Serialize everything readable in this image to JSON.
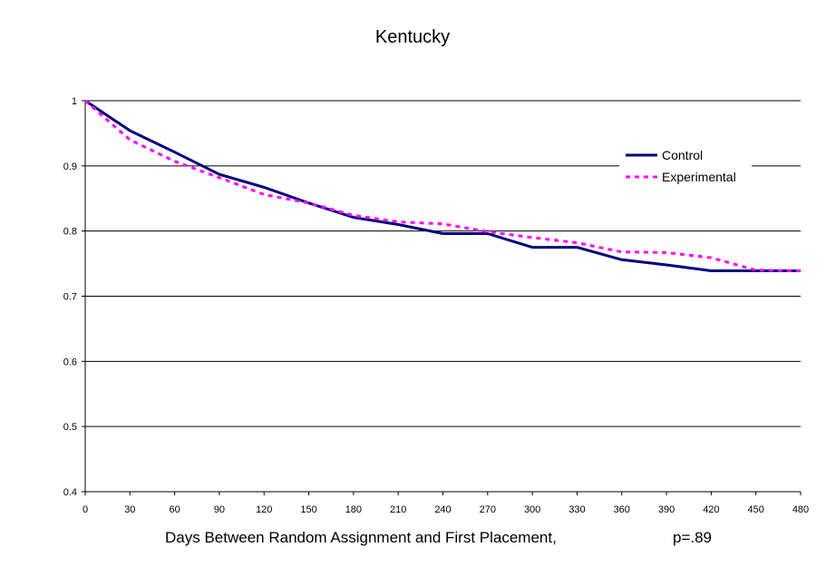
{
  "chart_data": {
    "type": "line",
    "title": "Kentucky",
    "xlabel": "Days Between Random Assignment and First Placement,",
    "note": "p=.89",
    "ylabel": "",
    "xlim": [
      0,
      480
    ],
    "ylim": [
      0.4,
      1
    ],
    "x_ticks": [
      0,
      30,
      60,
      90,
      120,
      150,
      180,
      210,
      240,
      270,
      300,
      330,
      360,
      390,
      420,
      450,
      480
    ],
    "y_ticks": [
      0.4,
      0.5,
      0.6,
      0.7,
      0.8,
      0.9,
      1
    ],
    "y_tick_labels": [
      "0.4",
      "0.5",
      "0.6",
      "0.7",
      "0.8",
      "0.9",
      "1"
    ],
    "grid": "horizontal",
    "legend_position": "right",
    "series": [
      {
        "name": "Control",
        "color": "#000080",
        "style": "solid",
        "x": [
          0,
          30,
          60,
          90,
          120,
          150,
          180,
          210,
          240,
          270,
          300,
          330,
          360,
          390,
          420,
          450,
          480
        ],
        "y": [
          1.0,
          0.954,
          0.921,
          0.887,
          0.867,
          0.843,
          0.821,
          0.81,
          0.796,
          0.796,
          0.775,
          0.775,
          0.756,
          0.748,
          0.739,
          0.739,
          0.739
        ]
      },
      {
        "name": "Experimental",
        "color": "#ff00ff",
        "style": "dotted",
        "x": [
          0,
          30,
          60,
          90,
          120,
          150,
          180,
          210,
          240,
          270,
          300,
          330,
          360,
          390,
          420,
          450,
          480
        ],
        "y": [
          1.0,
          0.94,
          0.907,
          0.882,
          0.856,
          0.843,
          0.824,
          0.814,
          0.811,
          0.799,
          0.79,
          0.782,
          0.768,
          0.767,
          0.759,
          0.74,
          0.739
        ]
      }
    ]
  }
}
